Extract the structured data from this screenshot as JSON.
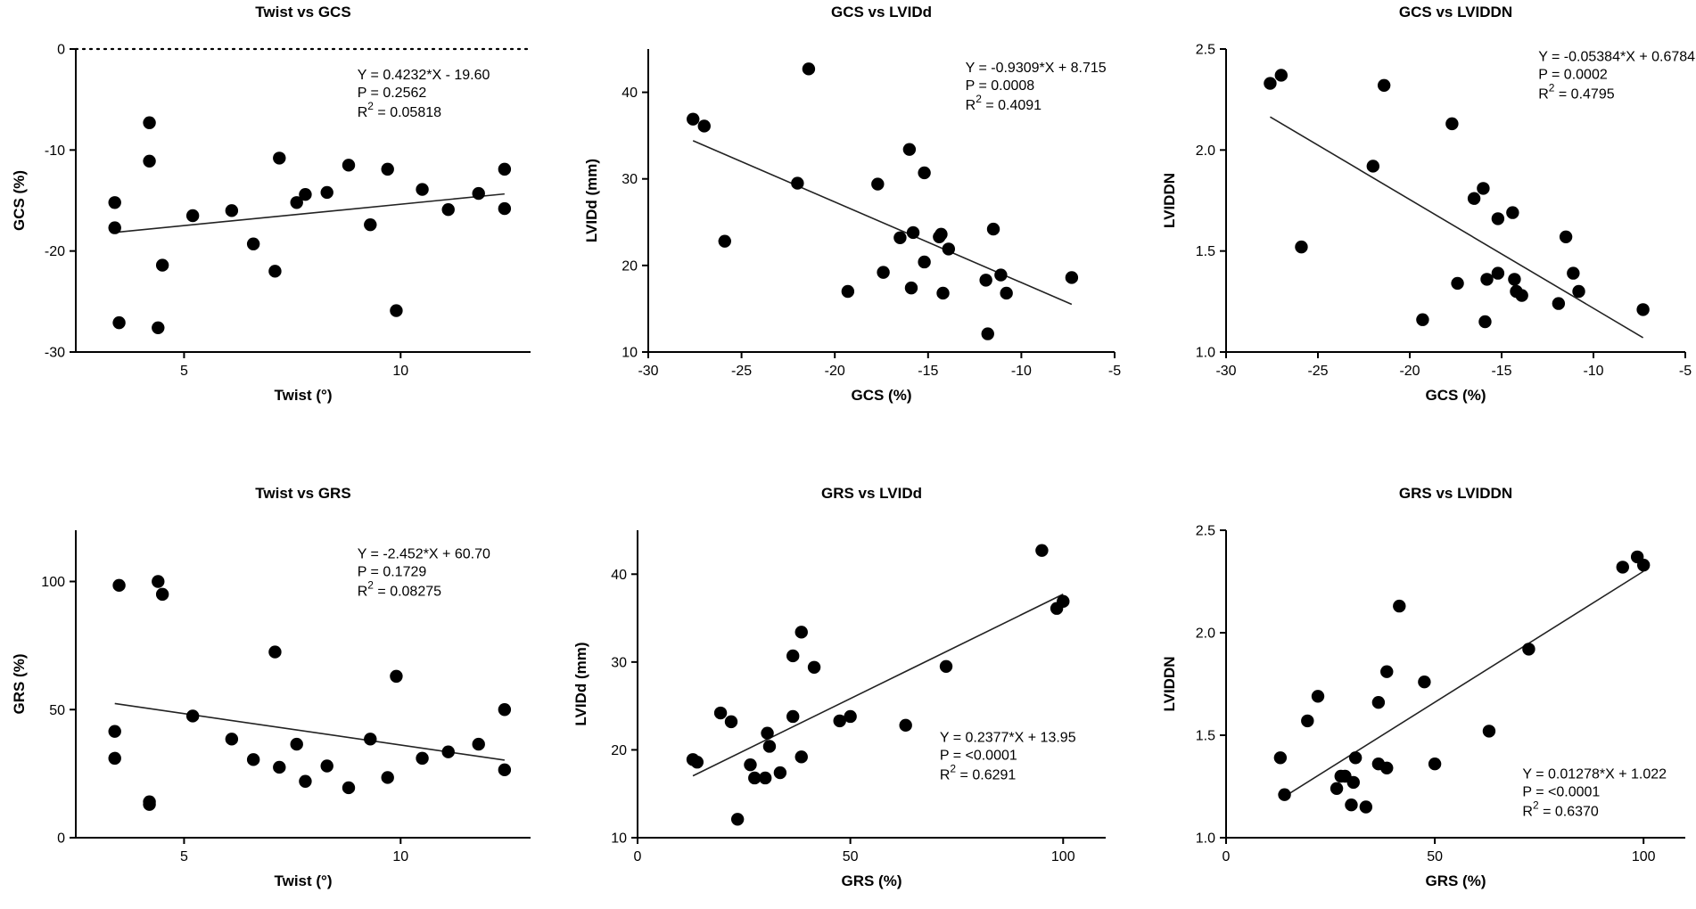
{
  "chart_data": [
    {
      "type": "scatter",
      "title": "Twist vs GCS",
      "xlabel": "Twist (°)",
      "ylabel": "GCS (%)",
      "xlim": [
        2.5,
        13
      ],
      "ylim": [
        -30,
        0
      ],
      "xticks": [
        5,
        10
      ],
      "xtick_labels": [
        "5",
        "10"
      ],
      "yticks": [
        -30,
        -20,
        -10,
        0
      ],
      "ytick_labels": [
        "-30",
        "-20",
        "-10",
        "0"
      ],
      "zero_line": true,
      "points": [
        [
          3.4,
          -15.2
        ],
        [
          3.4,
          -17.7
        ],
        [
          3.5,
          -27.1
        ],
        [
          4.2,
          -7.3
        ],
        [
          4.2,
          -11.1
        ],
        [
          4.4,
          -27.6
        ],
        [
          4.5,
          -21.4
        ],
        [
          5.2,
          -16.5
        ],
        [
          6.1,
          -16.0
        ],
        [
          6.6,
          -19.3
        ],
        [
          7.1,
          -22.0
        ],
        [
          7.2,
          -10.8
        ],
        [
          7.6,
          -15.2
        ],
        [
          7.8,
          -14.4
        ],
        [
          8.3,
          -14.2
        ],
        [
          8.8,
          -11.5
        ],
        [
          9.3,
          -17.4
        ],
        [
          9.7,
          -11.9
        ],
        [
          9.9,
          -25.9
        ],
        [
          10.5,
          -13.9
        ],
        [
          11.1,
          -15.9
        ],
        [
          11.8,
          -14.3
        ],
        [
          12.4,
          -11.9
        ],
        [
          12.4,
          -15.8
        ]
      ],
      "fit": {
        "x": [
          3.4,
          12.4
        ],
        "y": [
          -18.16,
          -14.35
        ]
      },
      "stats": [
        "Y = 0.4232*X - 19.60",
        "P = 0.2562",
        "R2 = 0.05818"
      ],
      "stats_pos": [
        9.0,
        -3.0
      ],
      "stats_base": "R",
      "stats_sup": "2",
      "stats_rest": " = 0.05818"
    },
    {
      "type": "scatter",
      "title": "GCS vs LVIDd",
      "xlabel": "GCS (%)",
      "ylabel": "LVIDd (mm)",
      "xlim": [
        -30,
        -5
      ],
      "ylim": [
        10,
        45
      ],
      "xticks": [
        -30,
        -25,
        -20,
        -15,
        -10,
        -5
      ],
      "xtick_labels": [
        "-30",
        "-25",
        "-20",
        "-15",
        "-10",
        "-5"
      ],
      "yticks": [
        10,
        20,
        30,
        40
      ],
      "ytick_labels": [
        "10",
        "20",
        "30",
        "40"
      ],
      "zero_line": false,
      "points": [
        [
          -27.6,
          36.9
        ],
        [
          -27.0,
          36.1
        ],
        [
          -25.9,
          22.8
        ],
        [
          -22.0,
          29.5
        ],
        [
          -21.4,
          42.7
        ],
        [
          -19.3,
          17.0
        ],
        [
          -17.7,
          29.4
        ],
        [
          -17.4,
          19.2
        ],
        [
          -16.5,
          23.2
        ],
        [
          -16.0,
          33.4
        ],
        [
          -15.9,
          17.4
        ],
        [
          -15.8,
          23.8
        ],
        [
          -15.2,
          20.4
        ],
        [
          -15.2,
          30.7
        ],
        [
          -14.4,
          23.3
        ],
        [
          -14.3,
          23.6
        ],
        [
          -14.2,
          16.8
        ],
        [
          -13.9,
          21.9
        ],
        [
          -11.9,
          18.3
        ],
        [
          -11.8,
          12.1
        ],
        [
          -11.5,
          24.2
        ],
        [
          -11.1,
          18.9
        ],
        [
          -10.8,
          16.8
        ],
        [
          -7.3,
          18.6
        ]
      ],
      "fit": {
        "x": [
          -27.6,
          -7.3
        ],
        "y": [
          34.41,
          15.51
        ]
      },
      "stats": [
        "Y = -0.9309*X + 8.715",
        "P = 0.0008",
        "R2 = 0.4091"
      ],
      "stats_pos": [
        -13.0,
        42.3
      ],
      "stats_base": "R",
      "stats_sup": "2",
      "stats_rest": " = 0.4091"
    },
    {
      "type": "scatter",
      "title": "GCS vs LVIDDN",
      "xlabel": "GCS (%)",
      "ylabel": "LVIDDN",
      "xlim": [
        -30,
        -5
      ],
      "ylim": [
        1.0,
        2.5
      ],
      "xticks": [
        -30,
        -25,
        -20,
        -15,
        -10,
        -5
      ],
      "xtick_labels": [
        "-30",
        "-25",
        "-20",
        "-15",
        "-10",
        "-5"
      ],
      "yticks": [
        1.0,
        1.5,
        2.0,
        2.5
      ],
      "ytick_labels": [
        "1.0",
        "1.5",
        "2.0",
        "2.5"
      ],
      "zero_line": false,
      "points": [
        [
          -27.6,
          2.33
        ],
        [
          -27.0,
          2.37
        ],
        [
          -25.9,
          1.52
        ],
        [
          -22.0,
          1.92
        ],
        [
          -21.4,
          2.32
        ],
        [
          -19.3,
          1.16
        ],
        [
          -17.7,
          2.13
        ],
        [
          -17.4,
          1.34
        ],
        [
          -16.5,
          1.76
        ],
        [
          -16.0,
          1.81
        ],
        [
          -15.9,
          1.15
        ],
        [
          -15.8,
          1.36
        ],
        [
          -15.2,
          1.39
        ],
        [
          -15.2,
          1.66
        ],
        [
          -14.4,
          1.69
        ],
        [
          -14.3,
          1.36
        ],
        [
          -14.2,
          1.3
        ],
        [
          -13.9,
          1.28
        ],
        [
          -11.9,
          1.24
        ],
        [
          -11.5,
          1.57
        ],
        [
          -11.1,
          1.39
        ],
        [
          -10.8,
          1.3
        ],
        [
          -7.3,
          1.21
        ]
      ],
      "fit": {
        "x": [
          -27.6,
          -7.3
        ],
        "y": [
          2.164,
          1.071
        ]
      },
      "stats": [
        "Y = -0.05384*X + 0.6784",
        "P = 0.0002",
        "R2 = 0.4795"
      ],
      "stats_pos": [
        -13.0,
        2.44
      ],
      "stats_base": "R",
      "stats_sup": "2",
      "stats_rest": " = 0.4795"
    },
    {
      "type": "scatter",
      "title": "Twist vs GRS",
      "xlabel": "Twist (°)",
      "ylabel": "GRS (%)",
      "xlim": [
        2.5,
        13
      ],
      "ylim": [
        0,
        120
      ],
      "xticks": [
        5,
        10
      ],
      "xtick_labels": [
        "5",
        "10"
      ],
      "yticks": [
        0,
        50,
        100
      ],
      "ytick_labels": [
        "0",
        "50",
        "100"
      ],
      "zero_line": false,
      "points": [
        [
          3.4,
          31.0
        ],
        [
          3.4,
          41.5
        ],
        [
          3.5,
          98.5
        ],
        [
          4.2,
          14.0
        ],
        [
          4.2,
          13.0
        ],
        [
          4.4,
          100.0
        ],
        [
          4.5,
          95.0
        ],
        [
          5.2,
          47.5
        ],
        [
          6.1,
          38.5
        ],
        [
          6.6,
          30.5
        ],
        [
          7.1,
          72.5
        ],
        [
          7.2,
          27.5
        ],
        [
          7.6,
          36.5
        ],
        [
          7.8,
          22.0
        ],
        [
          8.3,
          28.0
        ],
        [
          8.8,
          19.5
        ],
        [
          9.3,
          38.5
        ],
        [
          9.7,
          23.5
        ],
        [
          9.9,
          63.0
        ],
        [
          10.5,
          31.0
        ],
        [
          11.1,
          33.5
        ],
        [
          11.8,
          36.5
        ],
        [
          12.4,
          50.0
        ],
        [
          12.4,
          26.5
        ]
      ],
      "fit": {
        "x": [
          3.4,
          12.4
        ],
        "y": [
          52.36,
          30.29
        ]
      },
      "stats": [
        "Y = -2.452*X + 60.70",
        "P = 0.1729",
        "R2 = 0.08275"
      ],
      "stats_pos": [
        9.0,
        109.0
      ],
      "stats_base": "R",
      "stats_sup": "2",
      "stats_rest": " = 0.08275"
    },
    {
      "type": "scatter",
      "title": "GRS vs LVIDd",
      "xlabel": "GRS (%)",
      "ylabel": "LVIDd (mm)",
      "xlim": [
        0,
        110
      ],
      "ylim": [
        10,
        45
      ],
      "xticks": [
        0,
        50,
        100
      ],
      "xtick_labels": [
        "0",
        "50",
        "100"
      ],
      "yticks": [
        10,
        20,
        30,
        40
      ],
      "ytick_labels": [
        "10",
        "20",
        "30",
        "40"
      ],
      "zero_line": false,
      "points": [
        [
          13.0,
          18.9
        ],
        [
          14.0,
          18.6
        ],
        [
          19.5,
          24.2
        ],
        [
          22.0,
          23.2
        ],
        [
          23.5,
          12.1
        ],
        [
          26.5,
          18.3
        ],
        [
          27.5,
          16.8
        ],
        [
          30.0,
          16.8
        ],
        [
          30.5,
          21.9
        ],
        [
          31.0,
          20.4
        ],
        [
          33.5,
          17.4
        ],
        [
          36.5,
          30.7
        ],
        [
          36.5,
          23.8
        ],
        [
          38.5,
          19.2
        ],
        [
          38.5,
          33.4
        ],
        [
          41.5,
          29.4
        ],
        [
          47.5,
          23.3
        ],
        [
          50.0,
          23.8
        ],
        [
          63.0,
          22.8
        ],
        [
          72.5,
          29.5
        ],
        [
          95.0,
          42.7
        ],
        [
          98.5,
          36.1
        ],
        [
          100.0,
          36.9
        ]
      ],
      "fit": {
        "x": [
          13.0,
          100.0
        ],
        "y": [
          17.04,
          37.72
        ]
      },
      "stats": [
        "Y = 0.2377*X + 13.95",
        "P = <0.0001",
        "R2 = 0.6291"
      ],
      "stats_pos": [
        71.0,
        20.9
      ],
      "stats_base": "R",
      "stats_sup": "2",
      "stats_rest": " = 0.6291"
    },
    {
      "type": "scatter",
      "title": "GRS vs LVIDDN",
      "xlabel": "GRS (%)",
      "ylabel": "LVIDDN",
      "xlim": [
        0,
        110
      ],
      "ylim": [
        1.0,
        2.5
      ],
      "xticks": [
        0,
        50,
        100
      ],
      "xtick_labels": [
        "0",
        "50",
        "100"
      ],
      "yticks": [
        1.0,
        1.5,
        2.0,
        2.5
      ],
      "ytick_labels": [
        "1.0",
        "1.5",
        "2.0",
        "2.5"
      ],
      "zero_line": false,
      "points": [
        [
          13.0,
          1.39
        ],
        [
          14.0,
          1.21
        ],
        [
          19.5,
          1.57
        ],
        [
          22.0,
          1.69
        ],
        [
          26.5,
          1.24
        ],
        [
          27.5,
          1.3
        ],
        [
          28.5,
          1.3
        ],
        [
          30.0,
          1.16
        ],
        [
          30.5,
          1.27
        ],
        [
          31.0,
          1.39
        ],
        [
          33.5,
          1.15
        ],
        [
          36.5,
          1.66
        ],
        [
          36.5,
          1.36
        ],
        [
          38.5,
          1.34
        ],
        [
          38.5,
          1.81
        ],
        [
          41.5,
          2.13
        ],
        [
          47.5,
          1.76
        ],
        [
          50.0,
          1.36
        ],
        [
          63.0,
          1.52
        ],
        [
          72.5,
          1.92
        ],
        [
          95.0,
          2.32
        ],
        [
          98.5,
          2.37
        ],
        [
          100.0,
          2.33
        ]
      ],
      "fit": {
        "x": [
          13.0,
          100.0
        ],
        "y": [
          1.188,
          2.3
        ]
      },
      "stats": [
        "Y = 0.01278*X + 1.022",
        "P = <0.0001",
        "R2 = 0.6370"
      ],
      "stats_pos": [
        71.0,
        1.29
      ],
      "stats_base": "R",
      "stats_sup": "2",
      "stats_rest": " = 0.6370"
    }
  ]
}
